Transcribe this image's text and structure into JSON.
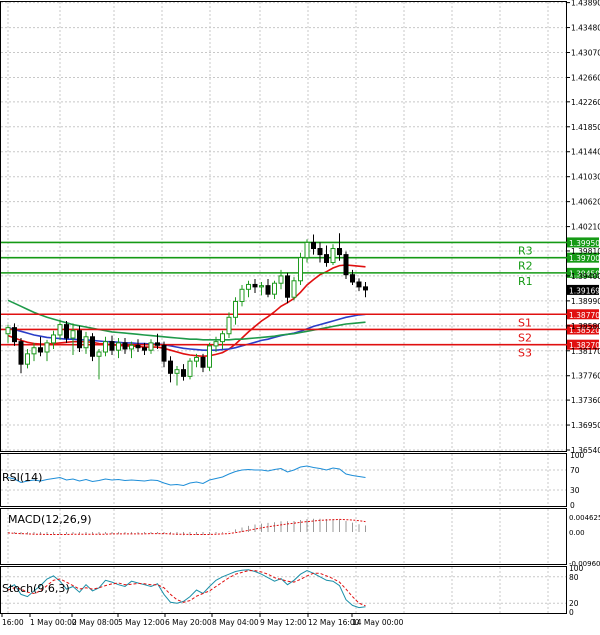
{
  "chart_data": [
    {
      "type": "candlestick",
      "panel": "price",
      "ylim": [
        1.3654,
        1.439
      ],
      "y_ticks": [
        1.3654,
        1.3695,
        1.3736,
        1.3776,
        1.3817,
        1.3858,
        1.3899,
        1.394,
        1.3981,
        1.4021,
        1.4062,
        1.4103,
        1.4144,
        1.4185,
        1.4226,
        1.4266,
        1.4307,
        1.4348,
        1.4389
      ],
      "y_tick_labels": [
        "1.36540",
        "1.36950",
        "1.37360",
        "1.37760",
        "1.38170",
        "1.38580",
        "1.38990",
        "1.39400",
        "1.39810",
        "1.40210",
        "1.40620",
        "1.41030",
        "1.41440",
        "1.41850",
        "1.42260",
        "1.42660",
        "1.43070",
        "1.43480",
        "1.43890"
      ],
      "x_tick_labels": [
        "16:00",
        "1 May 00:00",
        "2 May 08:00",
        "5 May 12:00",
        "6 May 20:00",
        "8 May 04:00",
        "9 May 12:00",
        "12 May 16:00",
        "14 May 00:00"
      ],
      "grid": true,
      "current_price": 1.3917,
      "current_price_label": "1.39169",
      "levels": [
        {
          "name": "R3",
          "value": 1.3995,
          "label": "1.39950",
          "color": "#159a15"
        },
        {
          "name": "R2",
          "value": 1.397,
          "label": "1.39700",
          "color": "#159a15"
        },
        {
          "name": "R1",
          "value": 1.3945,
          "label": "1.39450",
          "color": "#159a15"
        },
        {
          "name": "S1",
          "value": 1.3877,
          "label": "1.38770",
          "color": "#e01010"
        },
        {
          "name": "S2",
          "value": 1.3852,
          "label": "1.38520",
          "color": "#e01010"
        },
        {
          "name": "S3",
          "value": 1.3827,
          "label": "1.38270",
          "color": "#e01010"
        }
      ],
      "candles": [
        [
          1.3845,
          1.386,
          1.383,
          1.3855
        ],
        [
          1.3855,
          1.3862,
          1.3825,
          1.3832
        ],
        [
          1.3832,
          1.3838,
          1.378,
          1.3795
        ],
        [
          1.3795,
          1.382,
          1.3788,
          1.3812
        ],
        [
          1.3812,
          1.383,
          1.38,
          1.3822
        ],
        [
          1.3822,
          1.384,
          1.3808,
          1.3815
        ],
        [
          1.3815,
          1.3835,
          1.38,
          1.383
        ],
        [
          1.383,
          1.385,
          1.382,
          1.3843
        ],
        [
          1.3843,
          1.3868,
          1.3835,
          1.386
        ],
        [
          1.386,
          1.3866,
          1.383,
          1.3838
        ],
        [
          1.3838,
          1.3862,
          1.381,
          1.385
        ],
        [
          1.385,
          1.3858,
          1.3815,
          1.3822
        ],
        [
          1.3822,
          1.3848,
          1.3812,
          1.384
        ],
        [
          1.384,
          1.3846,
          1.38,
          1.3808
        ],
        [
          1.3808,
          1.382,
          1.377,
          1.3815
        ],
        [
          1.3815,
          1.384,
          1.3808,
          1.3832
        ],
        [
          1.3832,
          1.3842,
          1.381,
          1.3818
        ],
        [
          1.3818,
          1.3838,
          1.3805,
          1.383
        ],
        [
          1.383,
          1.3838,
          1.3812,
          1.382
        ],
        [
          1.382,
          1.3832,
          1.3805,
          1.3826
        ],
        [
          1.3826,
          1.3836,
          1.3815,
          1.3822
        ],
        [
          1.3822,
          1.383,
          1.381,
          1.3818
        ],
        [
          1.3818,
          1.3836,
          1.3812,
          1.383
        ],
        [
          1.383,
          1.3845,
          1.382,
          1.3826
        ],
        [
          1.3826,
          1.3832,
          1.379,
          1.38
        ],
        [
          1.38,
          1.3808,
          1.3765,
          1.378
        ],
        [
          1.378,
          1.3792,
          1.376,
          1.3786
        ],
        [
          1.3786,
          1.3795,
          1.3768,
          1.3775
        ],
        [
          1.3775,
          1.3805,
          1.377,
          1.38
        ],
        [
          1.38,
          1.3812,
          1.379,
          1.3806
        ],
        [
          1.3806,
          1.3812,
          1.3782,
          1.379
        ],
        [
          1.379,
          1.383,
          1.3784,
          1.3825
        ],
        [
          1.3825,
          1.384,
          1.3815,
          1.3832
        ],
        [
          1.3832,
          1.385,
          1.382,
          1.3845
        ],
        [
          1.3845,
          1.388,
          1.3838,
          1.3872
        ],
        [
          1.3872,
          1.3905,
          1.386,
          1.3898
        ],
        [
          1.3898,
          1.3925,
          1.389,
          1.3918
        ],
        [
          1.3918,
          1.3932,
          1.3905,
          1.3926
        ],
        [
          1.3926,
          1.3935,
          1.3912,
          1.3922
        ],
        [
          1.3922,
          1.393,
          1.3908,
          1.3924
        ],
        [
          1.3924,
          1.3935,
          1.3905,
          1.391
        ],
        [
          1.391,
          1.3932,
          1.3902,
          1.3928
        ],
        [
          1.3928,
          1.395,
          1.3918,
          1.394
        ],
        [
          1.394,
          1.3945,
          1.3895,
          1.3905
        ],
        [
          1.3905,
          1.3938,
          1.39,
          1.3932
        ],
        [
          1.3932,
          1.3978,
          1.3925,
          1.397
        ],
        [
          1.397,
          1.4,
          1.3962,
          1.3995
        ],
        [
          1.3995,
          1.4008,
          1.3975,
          1.3985
        ],
        [
          1.3985,
          1.3995,
          1.3962,
          1.3975
        ],
        [
          1.3975,
          1.399,
          1.3955,
          1.3962
        ],
        [
          1.3962,
          1.3992,
          1.3958,
          1.3985
        ],
        [
          1.3985,
          1.401,
          1.3965,
          1.3975
        ],
        [
          1.3975,
          1.398,
          1.3935,
          1.3942
        ],
        [
          1.3942,
          1.395,
          1.3925,
          1.393
        ],
        [
          1.393,
          1.3936,
          1.3915,
          1.3922
        ],
        [
          1.3922,
          1.393,
          1.3905,
          1.3917
        ]
      ],
      "series": [
        {
          "color": "#e01010",
          "values": [
            1.3842,
            1.3838,
            1.3834,
            1.3831,
            1.3829,
            1.3828,
            1.3828,
            1.3829,
            1.383,
            1.3831,
            1.3832,
            1.3832,
            1.3832,
            1.3831,
            1.3829,
            1.3828,
            1.3827,
            1.3826,
            1.3825,
            1.3825,
            1.3824,
            1.3823,
            1.3823,
            1.3823,
            1.3821,
            1.3818,
            1.3815,
            1.3812,
            1.381,
            1.3809,
            1.3808,
            1.3809,
            1.3811,
            1.3814,
            1.382,
            1.3828,
            1.3838,
            1.3848,
            1.3857,
            1.3866,
            1.3873,
            1.3881,
            1.389,
            1.3896,
            1.3903,
            1.3913,
            1.3925,
            1.3934,
            1.3942,
            1.3947,
            1.3953,
            1.3957,
            1.3958,
            1.3957,
            1.3956,
            1.3955
          ]
        },
        {
          "color": "#2a3ec8",
          "values": [
            1.3855,
            1.3852,
            1.3849,
            1.3846,
            1.3843,
            1.3841,
            1.3839,
            1.3838,
            1.3837,
            1.3836,
            1.3836,
            1.3835,
            1.3835,
            1.3834,
            1.3833,
            1.3832,
            1.3832,
            1.3831,
            1.383,
            1.383,
            1.3829,
            1.3829,
            1.3828,
            1.3828,
            1.3827,
            1.3825,
            1.3823,
            1.3821,
            1.382,
            1.3819,
            1.3818,
            1.3818,
            1.3818,
            1.3819,
            1.382,
            1.3822,
            1.3825,
            1.3828,
            1.3831,
            1.3834,
            1.3836,
            1.3839,
            1.3842,
            1.3844,
            1.3846,
            1.3849,
            1.3853,
            1.3857,
            1.386,
            1.3863,
            1.3866,
            1.3869,
            1.3872,
            1.3874,
            1.3876,
            1.3877
          ]
        },
        {
          "color": "#1f9a4a",
          "values": [
            1.39,
            1.3895,
            1.389,
            1.3885,
            1.388,
            1.3876,
            1.3872,
            1.3869,
            1.3866,
            1.3863,
            1.386,
            1.3858,
            1.3856,
            1.3854,
            1.3852,
            1.385,
            1.3848,
            1.3847,
            1.3846,
            1.3845,
            1.3844,
            1.3843,
            1.3842,
            1.3841,
            1.384,
            1.3839,
            1.3838,
            1.3837,
            1.3836,
            1.3836,
            1.3835,
            1.3835,
            1.3835,
            1.3835,
            1.3835,
            1.3836,
            1.3836,
            1.3837,
            1.3838,
            1.3839,
            1.384,
            1.3841,
            1.3843,
            1.3844,
            1.3845,
            1.3847,
            1.3849,
            1.3851,
            1.3853,
            1.3855,
            1.3857,
            1.3859,
            1.3861,
            1.3862,
            1.3863,
            1.3864
          ]
        }
      ]
    },
    {
      "type": "line",
      "panel": "RSI",
      "title": "RSI(14)",
      "ylim": [
        0,
        100
      ],
      "y_tick_labels": [
        "100",
        "70",
        "30",
        "0"
      ],
      "y_ticks": [
        100,
        70,
        30,
        0
      ],
      "guides": [
        70,
        30
      ],
      "values": [
        55,
        52,
        45,
        48,
        50,
        48,
        51,
        53,
        55,
        50,
        52,
        48,
        51,
        47,
        49,
        52,
        50,
        51,
        49,
        50,
        49,
        48,
        50,
        49,
        44,
        40,
        41,
        39,
        44,
        46,
        43,
        50,
        53,
        56,
        62,
        67,
        70,
        71,
        70,
        70,
        68,
        71,
        73,
        66,
        70,
        76,
        78,
        75,
        73,
        70,
        74,
        72,
        62,
        59,
        57,
        55
      ]
    },
    {
      "type": "bar",
      "panel": "MACD",
      "title": "MACD(12,26,9)",
      "ylim": [
        -0.00961,
        0.0068
      ],
      "y_tick_labels": [
        "0.004625",
        "0.00",
        "-0.009608"
      ],
      "y_ticks": [
        0.004625,
        0,
        -0.009608
      ],
      "histogram": [
        -0.0004,
        -0.0005,
        -0.0007,
        -0.0008,
        -0.0008,
        -0.0009,
        -0.0009,
        -0.0008,
        -0.0007,
        -0.0007,
        -0.0006,
        -0.0006,
        -0.0006,
        -0.0006,
        -0.0007,
        -0.0006,
        -0.0006,
        -0.0006,
        -0.0006,
        -0.0005,
        -0.0005,
        -0.0005,
        -0.0005,
        -0.0005,
        -0.0006,
        -0.0008,
        -0.0009,
        -0.001,
        -0.001,
        -0.0009,
        -0.0009,
        -0.0007,
        -0.0005,
        -0.0003,
        0.0002,
        0.0008,
        0.0014,
        0.0019,
        0.0023,
        0.0026,
        0.0028,
        0.003,
        0.0033,
        0.0033,
        0.0034,
        0.0037,
        0.004,
        0.0041,
        0.0041,
        0.004,
        0.004,
        0.0039,
        0.0034,
        0.0029,
        0.0024,
        0.002
      ],
      "signal": [
        -0.0003,
        -0.0004,
        -0.0005,
        -0.0006,
        -0.0007,
        -0.0007,
        -0.0008,
        -0.0008,
        -0.0008,
        -0.0008,
        -0.0007,
        -0.0007,
        -0.0007,
        -0.0007,
        -0.0007,
        -0.0007,
        -0.0006,
        -0.0006,
        -0.0006,
        -0.0006,
        -0.0006,
        -0.0006,
        -0.0005,
        -0.0005,
        -0.0005,
        -0.0006,
        -0.0007,
        -0.0007,
        -0.0008,
        -0.0008,
        -0.0008,
        -0.0008,
        -0.0007,
        -0.0006,
        -0.0005,
        -0.0002,
        0.0001,
        0.0005,
        0.0009,
        0.0013,
        0.0016,
        0.0019,
        0.0022,
        0.0025,
        0.0027,
        0.003,
        0.0032,
        0.0034,
        0.0036,
        0.0037,
        0.0038,
        0.0039,
        0.0038,
        0.0037,
        0.0035,
        0.0032
      ]
    },
    {
      "type": "line",
      "panel": "Stochastic",
      "title": "Stoch(9,6,3)",
      "ylim": [
        0,
        100
      ],
      "y_tick_labels": [
        "100",
        "80",
        "20",
        "0"
      ],
      "y_ticks": [
        100,
        80,
        20,
        0
      ],
      "guides": [
        80,
        20
      ],
      "series": [
        {
          "color": "#1a8fa8",
          "values": [
            55,
            62,
            40,
            35,
            48,
            60,
            75,
            82,
            70,
            52,
            58,
            45,
            62,
            48,
            55,
            72,
            68,
            62,
            58,
            70,
            66,
            62,
            58,
            64,
            40,
            22,
            20,
            24,
            35,
            50,
            42,
            58,
            72,
            80,
            86,
            92,
            95,
            96,
            92,
            86,
            78,
            70,
            76,
            62,
            72,
            86,
            94,
            88,
            80,
            72,
            70,
            60,
            28,
            15,
            10,
            12
          ]
        },
        {
          "color": "#e01010",
          "dashed": true,
          "values": [
            50,
            55,
            52,
            45,
            42,
            48,
            60,
            72,
            75,
            68,
            60,
            52,
            55,
            52,
            55,
            60,
            64,
            66,
            62,
            63,
            65,
            64,
            62,
            62,
            55,
            40,
            28,
            22,
            26,
            36,
            42,
            48,
            58,
            68,
            78,
            86,
            90,
            94,
            94,
            91,
            86,
            78,
            74,
            70,
            68,
            74,
            82,
            88,
            88,
            82,
            76,
            68,
            52,
            35,
            20,
            14
          ]
        }
      ]
    }
  ]
}
